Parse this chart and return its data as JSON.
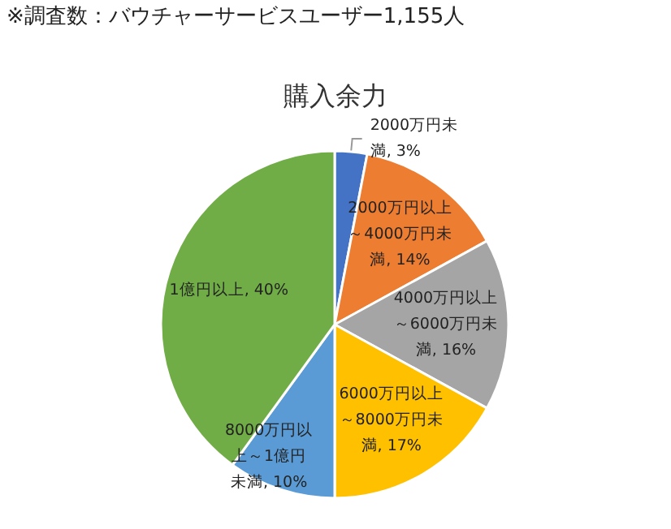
{
  "chart_data": {
    "type": "pie",
    "title": "購入余力",
    "annotations": [
      "※調査数：バウチャーサービスユーザー1,155人"
    ],
    "categories": [
      "2000万円未満",
      "2000万円以上～4000万円未満",
      "4000万円以上～6000万円未満",
      "6000万円以上～8000万円未満",
      "8000万円以上～1億円未満",
      "1億円以上"
    ],
    "values": [
      3,
      14,
      16,
      17,
      10,
      40
    ],
    "value_labels": [
      "3%",
      "14%",
      "16%",
      "17%",
      "10%",
      "40%"
    ],
    "colors": [
      "#4472c4",
      "#ed7d31",
      "#a5a5a5",
      "#ffc000",
      "#5b9bd5",
      "#70ad47"
    ],
    "legend": false
  }
}
